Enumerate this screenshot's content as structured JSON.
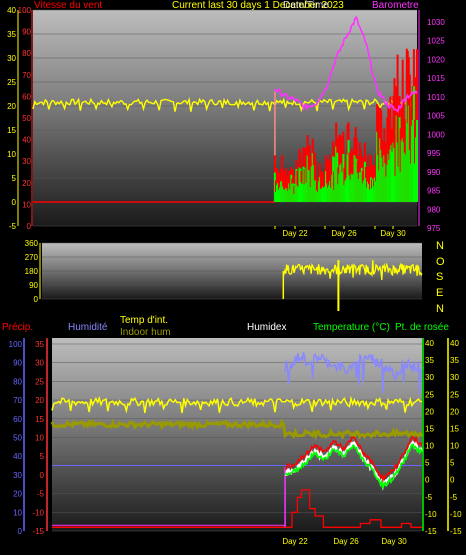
{
  "header": {
    "wind_label": "Vitesse du vent",
    "title_a": "Current last 30 days 1 December 2023",
    "title_b": "Date/Time",
    "baro_label": "Barometre"
  },
  "middle": {
    "compass": [
      "N",
      "O",
      "S",
      "E",
      "N"
    ]
  },
  "lower_header": {
    "precip_label": "Précip.",
    "humidity_label": "Humidité",
    "temp_int_label": "Temp d'int.",
    "indoor_hum_label": "Indoor hum",
    "humidex_label": "Humidex",
    "temperature_label": "Temperature (°C)",
    "dewpoint_label": "Pt. de rosée"
  },
  "colors": {
    "wind": "#ff0000",
    "gust": "#00ff00",
    "pressure": "#ff33ff",
    "temp_int": "#ffff00",
    "indoor_hum": "#999900",
    "humidity": "#8888ff",
    "temperature": "#ff0000",
    "dewpoint": "#00ff00",
    "precip": "#ff0000"
  },
  "chart_data": [
    {
      "type": "line",
      "name": "wind-pressure-chart",
      "x_ticks": [
        "Day 22",
        "Day 26",
        "Day 30"
      ],
      "left_axis": [
        40,
        35,
        30,
        25,
        20,
        15,
        10,
        5,
        0,
        -5
      ],
      "left_axis_b": [
        100,
        90,
        80,
        70,
        60,
        50,
        40,
        30,
        20,
        10,
        0
      ],
      "right_axis": [
        1030,
        1025,
        1020,
        1015,
        1010,
        1005,
        1000,
        995,
        990,
        985,
        980,
        975
      ],
      "series": [
        {
          "name": "Barometre",
          "values": [
            1012,
            1010,
            1009,
            1007,
            1008,
            1012,
            1020,
            1026,
            1031,
            1024,
            1012,
            1008,
            1006,
            1010,
            1011
          ]
        },
        {
          "name": "Temp d'int.",
          "values": [
            21,
            21,
            20,
            21,
            21,
            20,
            21,
            21,
            20,
            21,
            21,
            20,
            21,
            21,
            21
          ]
        },
        {
          "name": "Vitesse du vent",
          "values": [
            8,
            6,
            9,
            12,
            7,
            10,
            14,
            18,
            11,
            9,
            16,
            22,
            30,
            25,
            28
          ]
        }
      ]
    },
    {
      "type": "line",
      "name": "wind-direction-chart",
      "x_ticks": [],
      "left_axis": [
        360,
        270,
        180,
        90,
        0
      ],
      "series": [
        {
          "name": "direction",
          "values": [
            0,
            185,
            200,
            175,
            190,
            185,
            210,
            170,
            190,
            180,
            195,
            185,
            190,
            180,
            185
          ]
        }
      ]
    },
    {
      "type": "line",
      "name": "temperature-humidity-chart",
      "x_ticks": [
        "Day 22",
        "Day 26",
        "Day 30"
      ],
      "left_axis_precip": [
        100,
        90,
        80,
        70,
        60,
        50,
        40,
        30,
        20,
        10,
        0
      ],
      "left_axis_temp": [
        35,
        30,
        25,
        20,
        15,
        10,
        5,
        0,
        -5,
        -10,
        -15
      ],
      "right_axis": [
        40,
        35,
        30,
        25,
        20,
        15,
        10,
        5,
        0,
        -5,
        -10,
        -15
      ],
      "series": [
        {
          "name": "Humidité",
          "values": [
            90,
            95,
            93,
            95,
            92,
            90,
            88,
            94,
            95,
            92,
            90,
            85,
            92,
            90,
            88
          ]
        },
        {
          "name": "Indoor hum",
          "values": [
            48,
            47,
            48,
            46,
            47,
            48,
            47,
            46,
            47,
            48,
            47,
            46,
            47,
            48,
            47
          ]
        },
        {
          "name": "Temperature (°C)",
          "values": [
            2,
            3,
            5,
            8,
            6,
            9,
            7,
            10,
            6,
            3,
            -1,
            1,
            5,
            10,
            8
          ]
        },
        {
          "name": "Pt. de rosée",
          "values": [
            0,
            1,
            3,
            6,
            4,
            7,
            5,
            8,
            4,
            1,
            -3,
            -1,
            3,
            8,
            6
          ]
        }
      ]
    }
  ]
}
